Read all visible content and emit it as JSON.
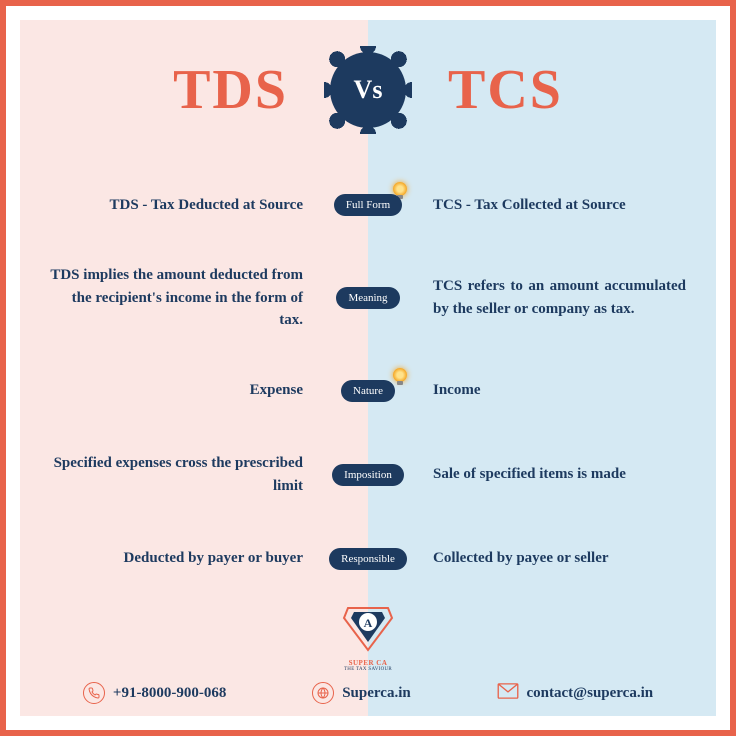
{
  "colors": {
    "accent": "#e8634b",
    "dark": "#1d3a5f",
    "left_bg": "#fbe7e4",
    "right_bg": "#d5e9f3",
    "white": "#ffffff"
  },
  "header": {
    "left_title": "TDS",
    "right_title": "TCS",
    "vs_label": "Vs"
  },
  "rows": [
    {
      "label": "Full Form",
      "left": "TDS - Tax Deducted at Source",
      "right": "TCS - Tax Collected at Source",
      "has_bulb": true,
      "right_justify": false
    },
    {
      "label": "Meaning",
      "left": "TDS implies the amount deducted from the recipient's income in the form of tax.",
      "right": "TCS refers to an amount accumulated by the seller or company as tax.",
      "has_bulb": false,
      "right_justify": true
    },
    {
      "label": "Nature",
      "left": "Expense",
      "right": "Income",
      "has_bulb": true,
      "right_justify": false
    },
    {
      "label": "Imposition",
      "left": "Specified expenses cross the prescribed limit",
      "right": "Sale of specified items is made",
      "has_bulb": false,
      "right_justify": false
    },
    {
      "label": "Responsible",
      "left": "Deducted by payer or buyer",
      "right": "Collected by payee or seller",
      "has_bulb": false,
      "right_justify": false
    }
  ],
  "logo": {
    "brand": "SUPER CA",
    "tagline": "THE TAX SAVIOUR"
  },
  "footer": {
    "phone": "+91-8000-900-068",
    "website": "Superca.in",
    "email": "contact@superca.in"
  }
}
